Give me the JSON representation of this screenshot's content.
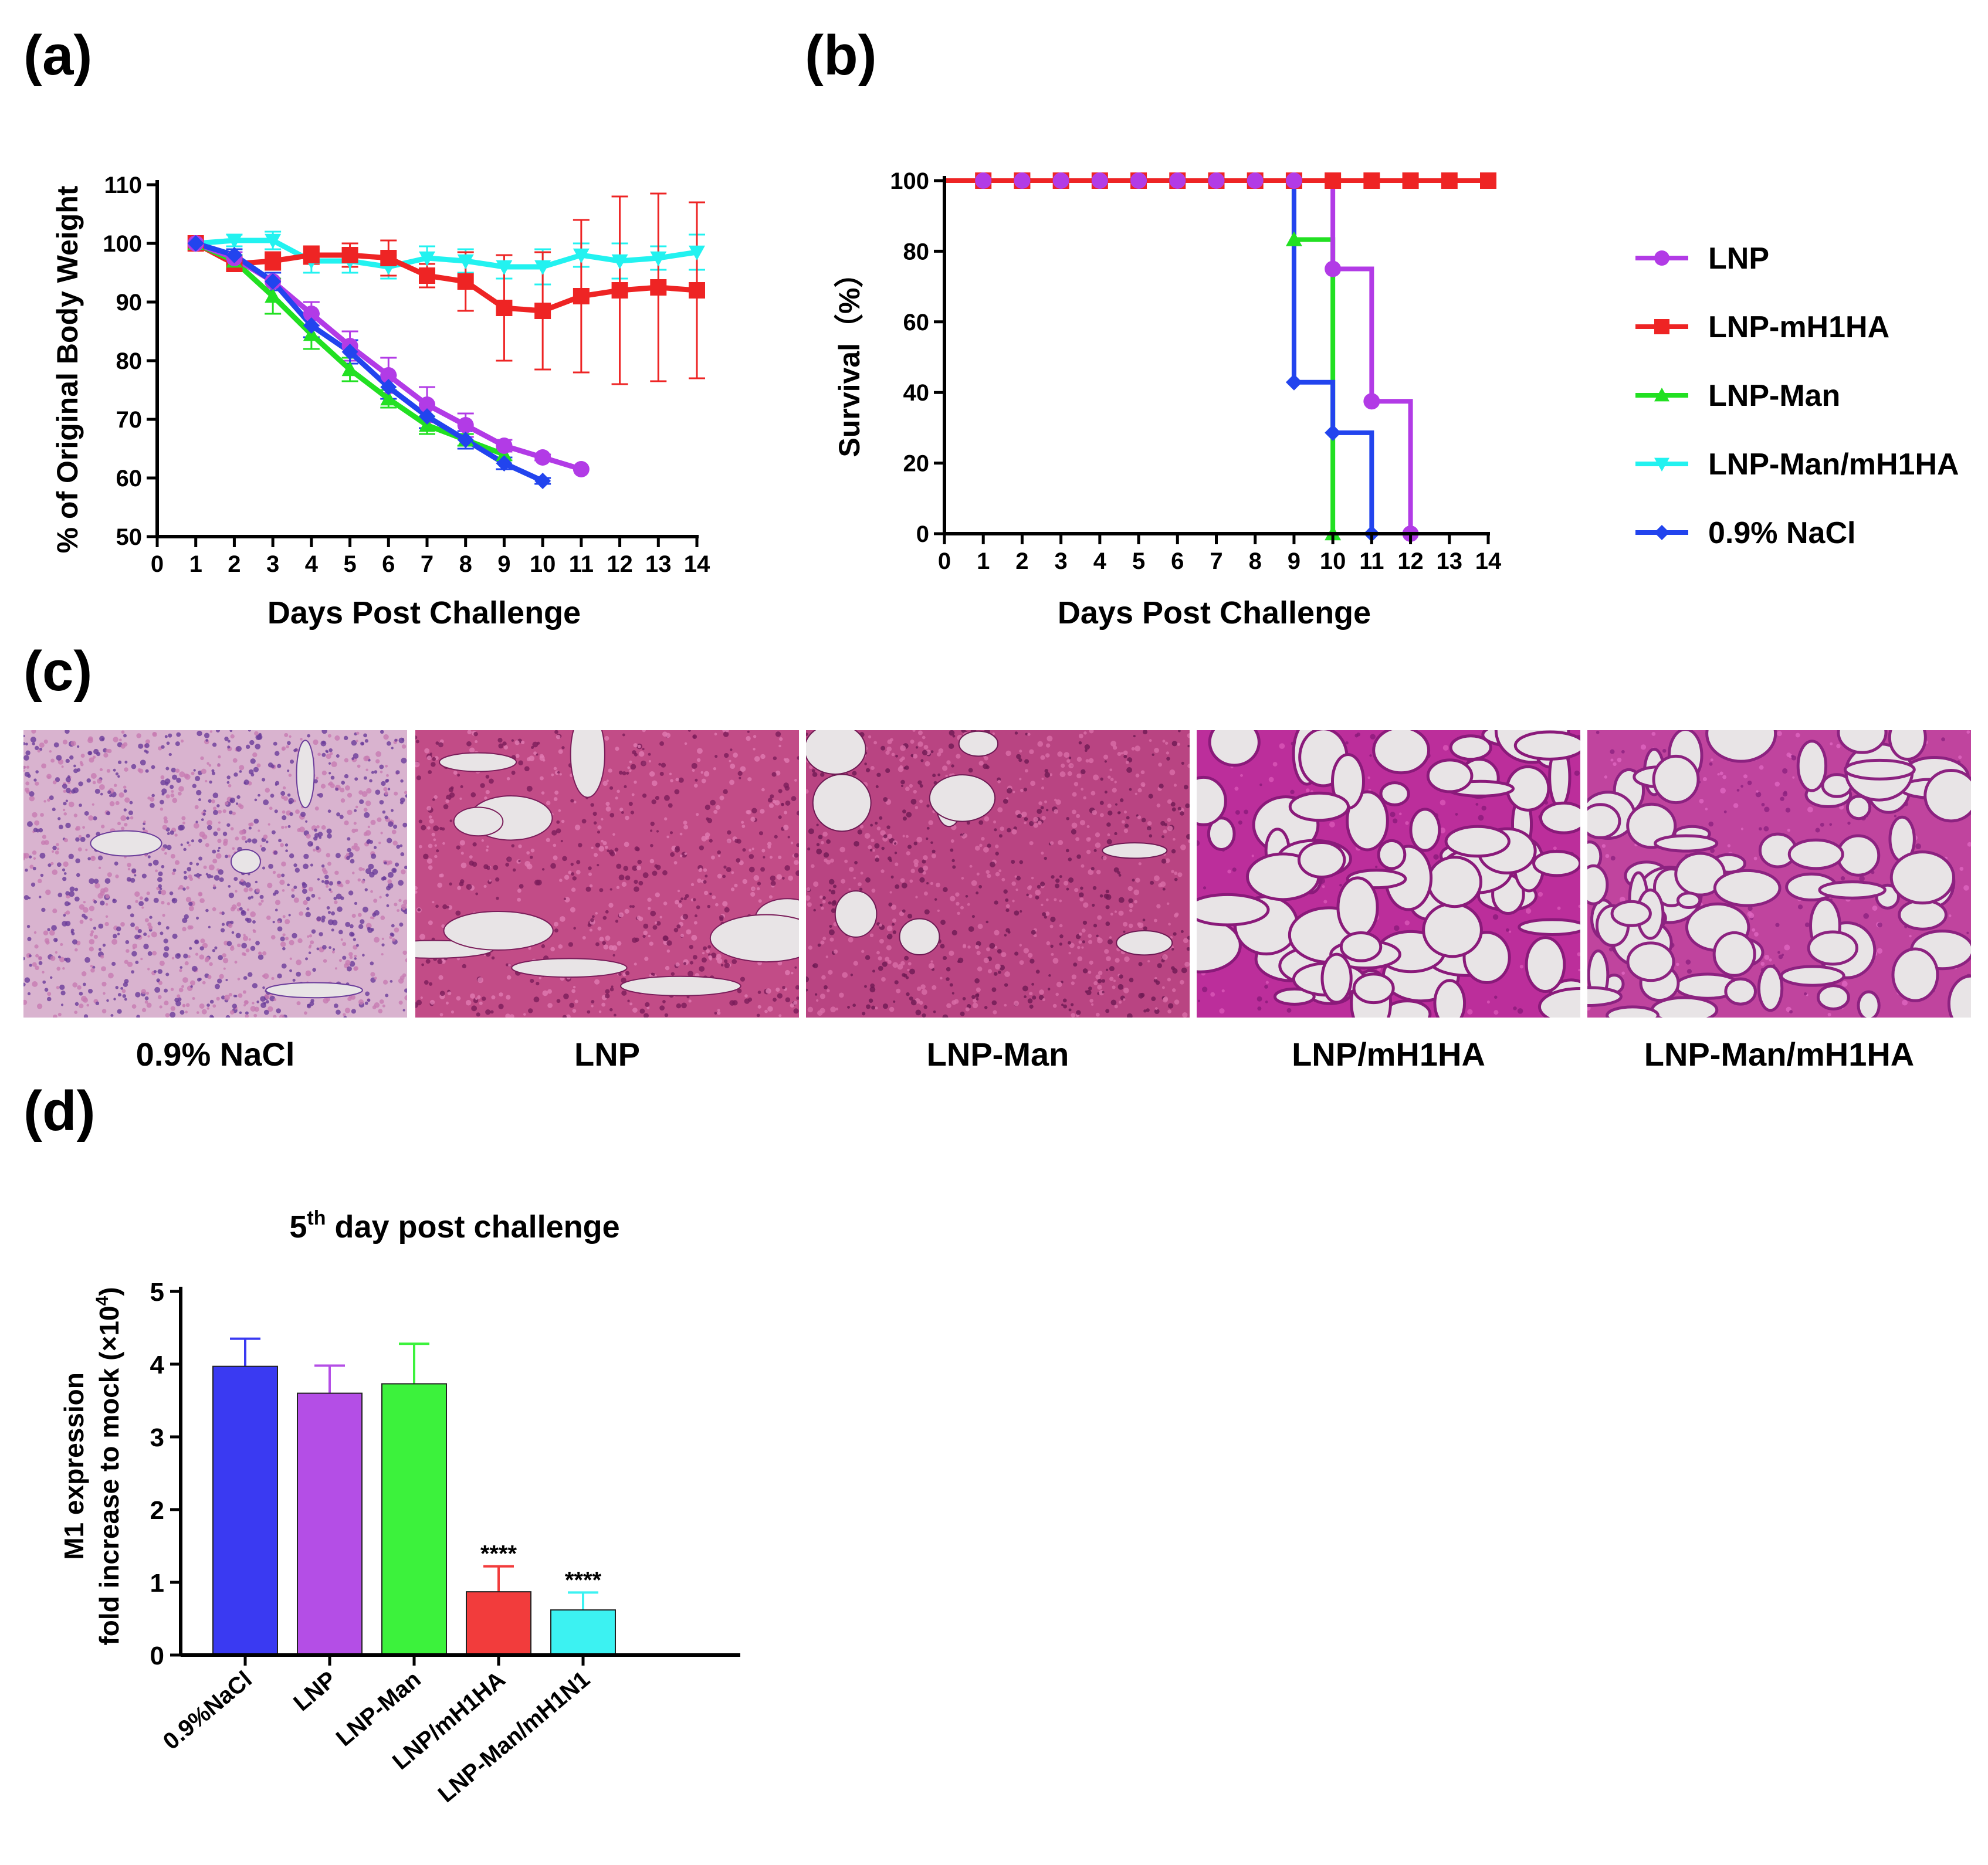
{
  "panels": {
    "a": "(a)",
    "b": "(b)",
    "c": "(c)",
    "d": "(d)"
  },
  "colors": {
    "LNP": "#b23be6",
    "LNP-mH1HA": "#ee2424",
    "LNP-Man": "#22e022",
    "LNP-Man/mH1HA": "#22f2f0",
    "0.9% NaCl": "#2244ee"
  },
  "chart_data": [
    {
      "id": "a",
      "type": "line",
      "xlabel": "Days Post Challenge",
      "ylabel": "% of Original Body Weight",
      "xlim": [
        0,
        14
      ],
      "ylim": [
        50,
        110
      ],
      "xticks": [
        "0",
        "1",
        "2",
        "3",
        "4",
        "5",
        "6",
        "7",
        "8",
        "9",
        "10",
        "11",
        "12",
        "13",
        "14"
      ],
      "yticks": [
        "50",
        "60",
        "70",
        "80",
        "90",
        "100",
        "110"
      ],
      "series": [
        {
          "name": "LNP-Man/mH1HA",
          "marker": "triangle-down",
          "x": [
            1,
            2,
            3,
            4,
            5,
            6,
            7,
            8,
            9,
            10,
            11,
            12,
            13,
            14
          ],
          "y": [
            100,
            100.5,
            100.5,
            97,
            97,
            96,
            97.5,
            97,
            96,
            96,
            98,
            97,
            97.5,
            98.5
          ],
          "err": [
            0,
            1,
            1.5,
            2,
            2,
            2,
            2,
            2,
            2,
            3,
            2,
            3,
            2,
            3
          ]
        },
        {
          "name": "LNP-mH1HA",
          "marker": "square",
          "x": [
            1,
            2,
            3,
            4,
            5,
            6,
            7,
            8,
            9,
            10,
            11,
            12,
            13,
            14
          ],
          "y": [
            100,
            96.5,
            97,
            98,
            98,
            97.5,
            94.5,
            93.5,
            89,
            88.5,
            91,
            92,
            92.5,
            92
          ],
          "err": [
            0,
            1,
            1.5,
            1.5,
            2,
            3,
            2,
            5,
            9,
            10,
            13,
            16,
            16,
            15
          ]
        },
        {
          "name": "LNP-Man",
          "marker": "triangle",
          "x": [
            1,
            2,
            3,
            4,
            5,
            6,
            7,
            8,
            9
          ],
          "y": [
            100,
            97,
            91,
            84.5,
            78.5,
            73.5,
            69,
            66.5,
            64
          ],
          "err": [
            0,
            1,
            3,
            2.5,
            2,
            1.5,
            1.5,
            1,
            1
          ]
        },
        {
          "name": "LNP",
          "marker": "circle",
          "x": [
            1,
            2,
            3,
            4,
            5,
            6,
            7,
            8,
            9,
            10,
            11
          ],
          "y": [
            100,
            97.5,
            93.5,
            88,
            82.5,
            77.5,
            72.5,
            69,
            65.5,
            63.5,
            61.5
          ],
          "err": [
            0,
            1,
            1.5,
            2,
            2.5,
            3,
            3,
            2,
            1,
            0.5,
            0
          ]
        },
        {
          "name": "0.9% NaCl",
          "marker": "diamond",
          "x": [
            1,
            2,
            3,
            4,
            5,
            6,
            7,
            8,
            9,
            10
          ],
          "y": [
            100,
            98,
            93.5,
            86,
            81.5,
            75.5,
            70.5,
            66.5,
            62.5,
            59.5
          ],
          "err": [
            0,
            1,
            1.5,
            2,
            2,
            2,
            2,
            1.5,
            1,
            0.5
          ]
        }
      ]
    },
    {
      "id": "b",
      "type": "line",
      "step": true,
      "xlabel": "Days Post Challenge",
      "ylabel": "Survival（%）",
      "xlim": [
        0,
        14
      ],
      "ylim": [
        0,
        100
      ],
      "xticks": [
        "0",
        "1",
        "2",
        "3",
        "4",
        "5",
        "6",
        "7",
        "8",
        "9",
        "10",
        "11",
        "12",
        "13",
        "14"
      ],
      "yticks": [
        "0",
        "20",
        "40",
        "60",
        "80",
        "100"
      ],
      "legend": [
        "LNP",
        "LNP-mH1HA",
        "LNP-Man",
        "LNP-Man/mH1HA",
        "0.9% NaCl"
      ],
      "legend_position": "right",
      "series": [
        {
          "name": "LNP-Man",
          "marker": "triangle",
          "x": [
            0,
            9,
            10
          ],
          "y": [
            100,
            83.3,
            0
          ]
        },
        {
          "name": "0.9% NaCl",
          "marker": "diamond",
          "x": [
            0,
            9,
            10,
            11
          ],
          "y": [
            100,
            42.9,
            28.6,
            0
          ]
        },
        {
          "name": "LNP",
          "marker": "circle",
          "x": [
            0,
            10,
            11,
            12
          ],
          "y": [
            100,
            75,
            37.5,
            0
          ]
        },
        {
          "name": "LNP-mH1HA",
          "marker": "square",
          "x": [
            0,
            1,
            2,
            3,
            4,
            5,
            6,
            7,
            8,
            9,
            10,
            11,
            12,
            13,
            14
          ],
          "y": [
            100,
            100,
            100,
            100,
            100,
            100,
            100,
            100,
            100,
            100,
            100,
            100,
            100,
            100,
            100
          ]
        },
        {
          "name": "LNP",
          "marker": "circle",
          "x": [
            1,
            2,
            3,
            4,
            5,
            6,
            7,
            8,
            9
          ],
          "y": [
            100,
            100,
            100,
            100,
            100,
            100,
            100,
            100,
            100
          ]
        }
      ]
    },
    {
      "id": "d",
      "type": "bar",
      "title": "5",
      "title_sup": "th",
      "title_rest": " day post challenge",
      "ylabel_line1": "M1 expression",
      "ylabel_line2": "fold increase to mock (×10",
      "ylabel_sup": "4",
      "ylabel_close": ")",
      "ylim": [
        0,
        5
      ],
      "yticks": [
        "0",
        "1",
        "2",
        "3",
        "4",
        "5"
      ],
      "categories": [
        "0.9%NaCl",
        "LNP",
        "LNP-Man",
        "LNP/mH1HA",
        "LNP-Man/mH1N1"
      ],
      "values": [
        3.97,
        3.6,
        3.73,
        0.87,
        0.62
      ],
      "errors": [
        0.38,
        0.38,
        0.55,
        0.35,
        0.24
      ],
      "bar_colors": [
        "#3a3af2",
        "#b44ee6",
        "#3cf23c",
        "#f23c3c",
        "#3cf2f2"
      ],
      "annotations": [
        "",
        "",
        "",
        "****",
        "****"
      ]
    }
  ],
  "histology": {
    "captions": [
      "0.9% NaCl",
      "LNP",
      "LNP-Man",
      "LNP/mH1HA",
      "LNP-Man/mH1HA"
    ]
  }
}
